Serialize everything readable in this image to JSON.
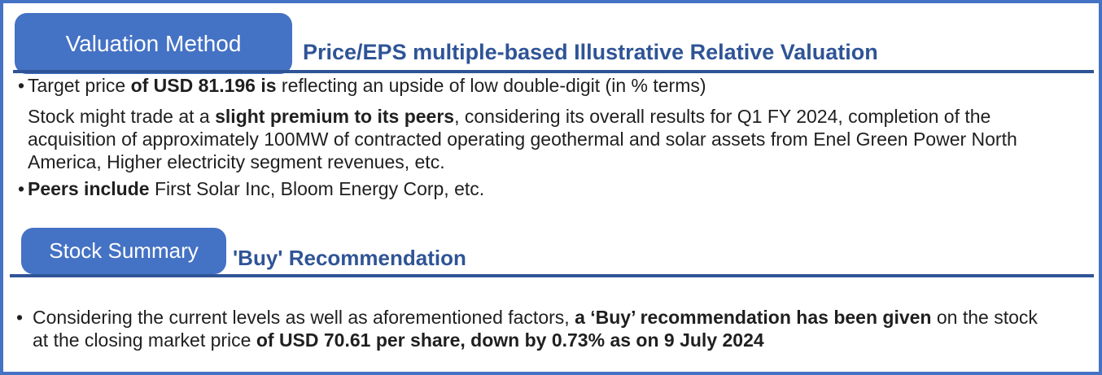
{
  "colors": {
    "accent": "#4472C4",
    "heading": "#2F5496",
    "body_text": "#1F1F1F",
    "background": "#FFFFFF"
  },
  "valuation": {
    "tab_label": "Valuation Method",
    "subtitle": "Price/EPS multiple-based Illustrative Relative Valuation",
    "bullet_char": "•",
    "line1": {
      "pre": "Target price ",
      "bold": "of USD 81.196 is",
      "post": " reflecting an upside of low double-digit (in % terms)"
    },
    "line2": {
      "pre": "Stock might trade at a ",
      "bold": "slight premium to its peers",
      "post": ", considering its overall results for Q1 FY 2024, completion of the"
    },
    "line3": "acquisition of approximately 100MW of contracted operating geothermal and solar assets from Enel Green Power North",
    "line4": "America, Higher electricity segment revenues, etc.",
    "line5": {
      "bold": "Peers include",
      "post": " First Solar Inc, Bloom Energy Corp, etc."
    }
  },
  "summary": {
    "tab_label": "Stock Summary",
    "subtitle": "'Buy' Recommendation",
    "bullet_char": "•",
    "line1": {
      "pre": "Considering the current levels as well as aforementioned factors, ",
      "bold": "a ‘Buy’ recommendation has been given",
      "post": " on the stock"
    },
    "line2": {
      "pre": "at the closing market price ",
      "bold": "of USD 70.61 per share, down by 0.73% as on 9 July 2024"
    }
  }
}
